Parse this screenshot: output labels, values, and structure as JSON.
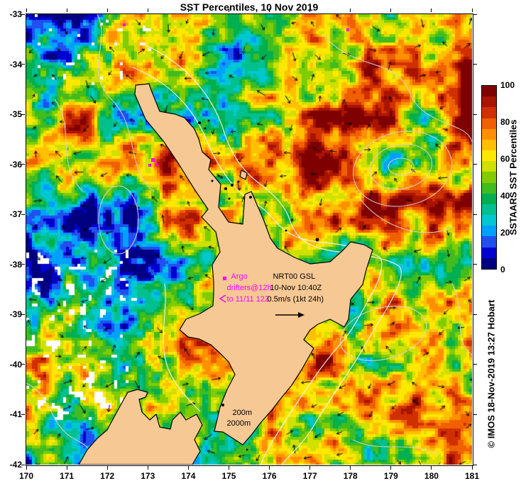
{
  "figure": {
    "title": "SST Percentiles, 10 Nov 2019",
    "credit": "© IMOS 18-Nov-2019 13:27 Hobart"
  },
  "map": {
    "lon_range": [
      170,
      181
    ],
    "lat_range": [
      -42,
      -33
    ]
  },
  "axes": {
    "x_ticks": [
      "170",
      "171",
      "172",
      "173",
      "174",
      "175",
      "176",
      "177",
      "178",
      "179",
      "180",
      "181"
    ],
    "y_ticks": [
      "-33",
      "-34",
      "-35",
      "-36",
      "-37",
      "-38",
      "-39",
      "-40",
      "-41",
      "-42"
    ]
  },
  "colorbar": {
    "title": "SSTAARS SST Percentiles",
    "tick_labels": [
      "100",
      "80",
      "60",
      "40",
      "20",
      "0"
    ],
    "tick_values": [
      100,
      80,
      60,
      40,
      20,
      0
    ],
    "range": [
      0,
      100
    ],
    "colors_bottom_to_top": [
      "#000080",
      "#0000d0",
      "#2050f0",
      "#00a0ff",
      "#00c8d0",
      "#00c090",
      "#00b050",
      "#40bc20",
      "#80cc00",
      "#d0e000",
      "#ffe800",
      "#ffc000",
      "#ff9000",
      "#f06000",
      "#d03000",
      "#a81400",
      "#7f0000"
    ]
  },
  "annotations": {
    "argo_label": "Argo",
    "nrt_label": "NRT00 GSL",
    "drifters_label": "drifters@12h",
    "datetime_label": "10-Nov 10:40Z",
    "drifters_to_label": "to 11/11 12Z",
    "scale_label": "0.5m/s (1kt 24h)",
    "contour_200m": "200m",
    "contour_2000m": "2000m"
  },
  "colors": {
    "land": "#f6c894",
    "coastline": "#000000",
    "accent_magenta": "#ff00ff",
    "contour_gray": "#d4d4d4",
    "contour_white": "#f2f2f2",
    "vector_black": "#000000"
  }
}
